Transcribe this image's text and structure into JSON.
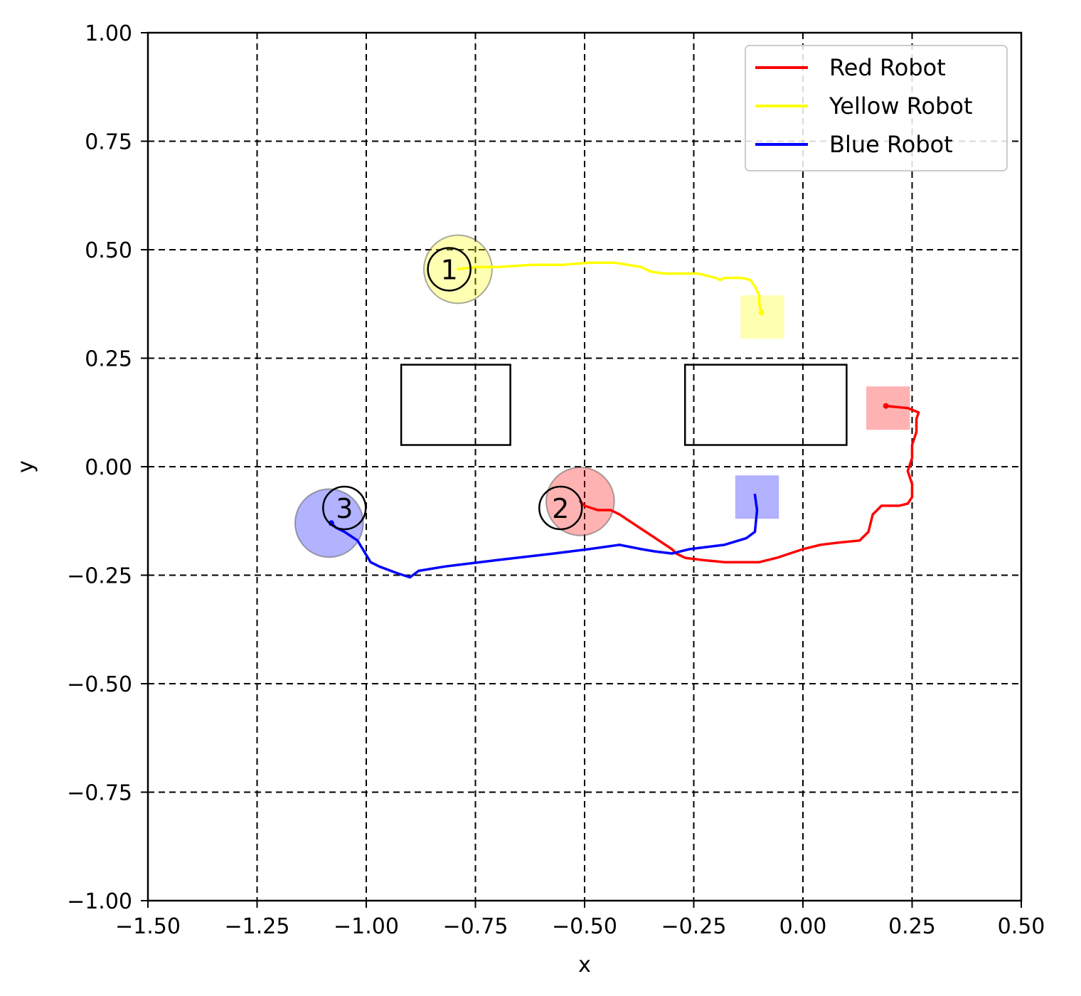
{
  "chart_data": {
    "type": "line",
    "title": "",
    "xlabel": "x",
    "ylabel": "y",
    "xlim": [
      -1.5,
      0.5
    ],
    "ylim": [
      -1.0,
      1.0
    ],
    "grid": true,
    "x_ticks": [
      "−1.50",
      "−1.25",
      "−1.00",
      "−0.75",
      "−0.50",
      "−0.25",
      "0.00",
      "0.25",
      "0.50"
    ],
    "x_tick_values": [
      -1.5,
      -1.25,
      -1.0,
      -0.75,
      -0.5,
      -0.25,
      0.0,
      0.25,
      0.5
    ],
    "y_ticks": [
      "1.00",
      "0.75",
      "0.50",
      "0.25",
      "0.00",
      "−0.25",
      "−0.50",
      "−0.75",
      "−1.00"
    ],
    "y_tick_values": [
      1.0,
      0.75,
      0.5,
      0.25,
      0.0,
      -0.25,
      -0.5,
      -0.75,
      -1.0
    ],
    "legend_position": "top-right",
    "series": [
      {
        "name": "Red Robot",
        "color": "#ff0000",
        "points": [
          [
            -0.51,
            -0.08
          ],
          [
            -0.5,
            -0.09
          ],
          [
            -0.47,
            -0.1
          ],
          [
            -0.44,
            -0.1
          ],
          [
            -0.42,
            -0.11
          ],
          [
            -0.39,
            -0.13
          ],
          [
            -0.36,
            -0.15
          ],
          [
            -0.33,
            -0.17
          ],
          [
            -0.3,
            -0.19
          ],
          [
            -0.29,
            -0.2
          ],
          [
            -0.27,
            -0.21
          ],
          [
            -0.23,
            -0.215
          ],
          [
            -0.18,
            -0.22
          ],
          [
            -0.1,
            -0.22
          ],
          [
            -0.06,
            -0.21
          ],
          [
            -0.03,
            -0.2
          ],
          [
            0.0,
            -0.19
          ],
          [
            0.04,
            -0.18
          ],
          [
            0.08,
            -0.175
          ],
          [
            0.13,
            -0.17
          ],
          [
            0.15,
            -0.15
          ],
          [
            0.16,
            -0.11
          ],
          [
            0.18,
            -0.09
          ],
          [
            0.2,
            -0.09
          ],
          [
            0.22,
            -0.09
          ],
          [
            0.24,
            -0.085
          ],
          [
            0.25,
            -0.07
          ],
          [
            0.25,
            -0.04
          ],
          [
            0.24,
            -0.01
          ],
          [
            0.25,
            0.02
          ],
          [
            0.25,
            0.05
          ],
          [
            0.26,
            0.08
          ],
          [
            0.26,
            0.11
          ],
          [
            0.265,
            0.125
          ],
          [
            0.24,
            0.135
          ],
          [
            0.19,
            0.14
          ]
        ],
        "start_marker": {
          "label": "2",
          "x": -0.51,
          "y": -0.08,
          "radius": 0.078
        },
        "goal": {
          "x": 0.195,
          "y": 0.135,
          "size": 0.1
        }
      },
      {
        "name": "Yellow Robot",
        "color": "#ffff00",
        "points": [
          [
            -0.79,
            0.455
          ],
          [
            -0.75,
            0.46
          ],
          [
            -0.7,
            0.46
          ],
          [
            -0.62,
            0.465
          ],
          [
            -0.55,
            0.465
          ],
          [
            -0.49,
            0.47
          ],
          [
            -0.46,
            0.47
          ],
          [
            -0.43,
            0.47
          ],
          [
            -0.4,
            0.465
          ],
          [
            -0.37,
            0.46
          ],
          [
            -0.35,
            0.45
          ],
          [
            -0.32,
            0.445
          ],
          [
            -0.27,
            0.445
          ],
          [
            -0.24,
            0.445
          ],
          [
            -0.22,
            0.44
          ],
          [
            -0.2,
            0.435
          ],
          [
            -0.19,
            0.43
          ],
          [
            -0.18,
            0.435
          ],
          [
            -0.14,
            0.435
          ],
          [
            -0.12,
            0.43
          ],
          [
            -0.11,
            0.415
          ],
          [
            -0.1,
            0.395
          ],
          [
            -0.1,
            0.375
          ],
          [
            -0.095,
            0.355
          ]
        ],
        "start_marker": {
          "label": "1",
          "x": -0.79,
          "y": 0.455,
          "radius": 0.078
        },
        "goal": {
          "x": -0.093,
          "y": 0.345,
          "size": 0.1
        }
      },
      {
        "name": "Blue Robot",
        "color": "#0000ff",
        "points": [
          [
            -0.11,
            -0.065
          ],
          [
            -0.105,
            -0.1
          ],
          [
            -0.11,
            -0.15
          ],
          [
            -0.13,
            -0.165
          ],
          [
            -0.18,
            -0.18
          ],
          [
            -0.26,
            -0.19
          ],
          [
            -0.3,
            -0.2
          ],
          [
            -0.34,
            -0.195
          ],
          [
            -0.37,
            -0.19
          ],
          [
            -0.42,
            -0.18
          ],
          [
            -0.49,
            -0.19
          ],
          [
            -0.57,
            -0.2
          ],
          [
            -0.7,
            -0.215
          ],
          [
            -0.82,
            -0.23
          ],
          [
            -0.88,
            -0.24
          ],
          [
            -0.9,
            -0.255
          ],
          [
            -0.93,
            -0.245
          ],
          [
            -0.97,
            -0.23
          ],
          [
            -0.99,
            -0.22
          ],
          [
            -1.02,
            -0.17
          ],
          [
            -1.05,
            -0.15
          ],
          [
            -1.07,
            -0.14
          ],
          [
            -1.08,
            -0.13
          ]
        ],
        "start_marker": {
          "label": "3",
          "x": -1.085,
          "y": -0.13,
          "radius": 0.078
        },
        "goal": {
          "x": -0.105,
          "y": -0.07,
          "size": 0.1
        }
      }
    ],
    "numbered_outlines": [
      {
        "label": "1",
        "x": -0.81,
        "y": 0.455
      },
      {
        "label": "2",
        "x": -0.555,
        "y": -0.095
      },
      {
        "label": "3",
        "x": -1.05,
        "y": -0.095
      }
    ],
    "obstacles": [
      {
        "x0": -0.92,
        "y0": 0.05,
        "x1": -0.67,
        "y1": 0.235
      },
      {
        "x0": -0.27,
        "y0": 0.05,
        "x1": 0.1,
        "y1": 0.235
      }
    ]
  }
}
